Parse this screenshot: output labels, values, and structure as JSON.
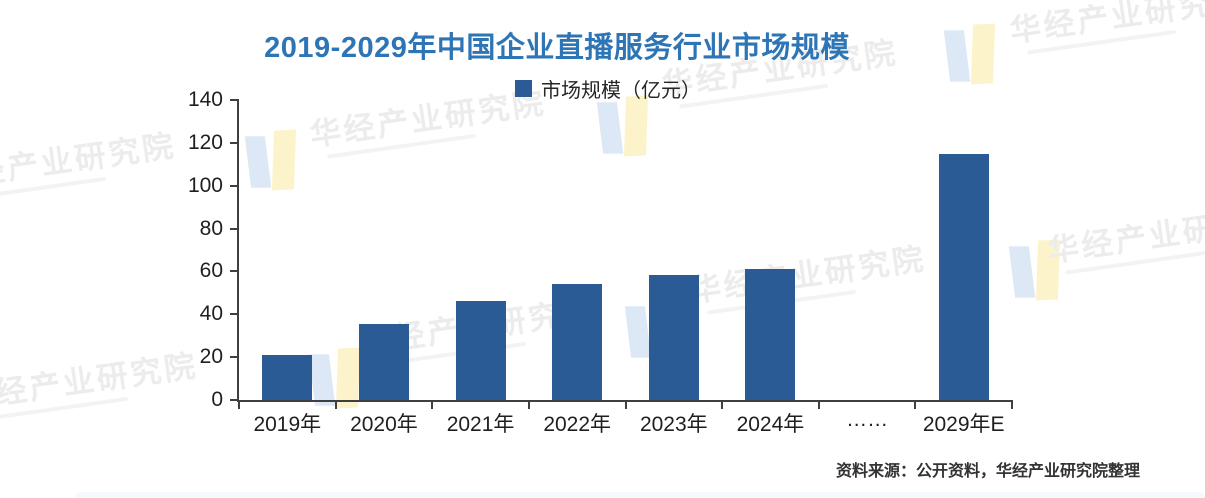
{
  "page": {
    "title": "2019-2029年中国企业直播服务行业市场规模",
    "source_note": "资料来源：公开资料，华经产业研究院整理",
    "watermark_text": "华经产业研究院",
    "colors": {
      "bar": "#2A5B94",
      "title_blue": "#2E75B6",
      "axis": "#3F3F3F",
      "watermark_text": "#ECECEC",
      "watermark_logo_blue": "#DDE8F6",
      "watermark_logo_yellow": "#FCF3CA"
    }
  },
  "chart_data": {
    "type": "bar",
    "title": "2019-2029年中国企业直播服务行业市场规模",
    "legend": [
      {
        "label": "市场规模（亿元）",
        "color": "#2A5B94"
      }
    ],
    "legend_position": "top",
    "categories": [
      "2019年",
      "2020年",
      "2021年",
      "2022年",
      "2023年",
      "2024年",
      "……",
      "2029年E"
    ],
    "values": [
      21,
      35.5,
      46,
      54,
      58.5,
      61,
      null,
      115
    ],
    "xlabel": "",
    "ylabel": "市场规模（亿元）",
    "ylim": [
      0,
      140
    ],
    "yticks": [
      0,
      20,
      40,
      60,
      80,
      100,
      120,
      140
    ],
    "grid": false
  }
}
